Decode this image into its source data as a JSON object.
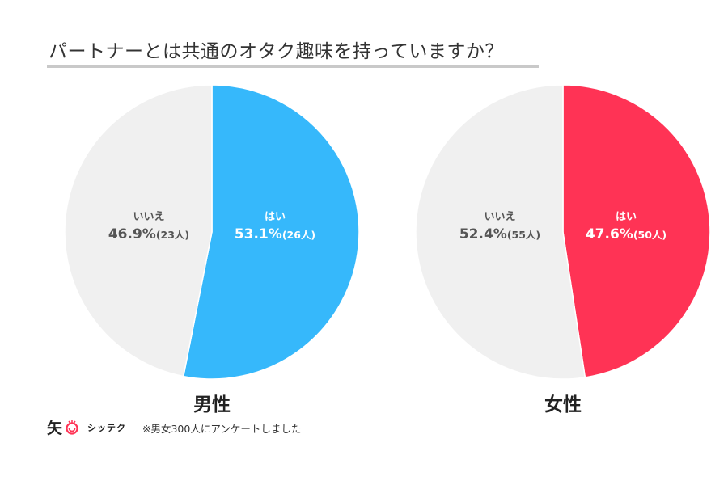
{
  "title": "パートナーとは共通のオタク趣味を持っていますか？",
  "footer": {
    "logo_text": "シッテク",
    "note": "※男女300人にアンケートしました"
  },
  "colors": {
    "yes_male": "#36b8fb",
    "yes_female": "#ff3355",
    "no": "#f0f0f0",
    "label_on_no": "#555555",
    "label_on_yes": "#ffffff",
    "logo_red": "#ff3355"
  },
  "chart_data": [
    {
      "type": "pie",
      "title": "男性",
      "slices": [
        {
          "label": "はい",
          "percent": 53.1,
          "count": 26,
          "pct_text": "53.1%",
          "count_text": "(26人)",
          "color": "#36b8fb"
        },
        {
          "label": "いいえ",
          "percent": 46.9,
          "count": 23,
          "pct_text": "46.9%",
          "count_text": "(23人)",
          "color": "#f0f0f0"
        }
      ]
    },
    {
      "type": "pie",
      "title": "女性",
      "slices": [
        {
          "label": "はい",
          "percent": 47.6,
          "count": 50,
          "pct_text": "47.6%",
          "count_text": "(50人)",
          "color": "#ff3355"
        },
        {
          "label": "いいえ",
          "percent": 52.4,
          "count": 55,
          "pct_text": "52.4%",
          "count_text": "(55人)",
          "color": "#f0f0f0"
        }
      ]
    }
  ]
}
